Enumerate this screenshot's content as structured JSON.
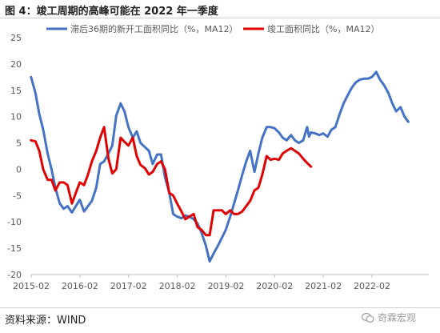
{
  "header": {
    "title": "图 4：竣工周期的高峰可能在 2022 年一季度"
  },
  "footer": {
    "source": "资料来源：WIND",
    "watermark": "奇霖宏观"
  },
  "chart_data": {
    "type": "line",
    "title": "图 4：竣工周期的高峰可能在 2022 年一季度",
    "xlabel": "",
    "ylabel": "",
    "ylim": [
      -20,
      25
    ],
    "yticks": [
      -20,
      -15,
      -10,
      -5,
      0,
      5,
      10,
      15,
      20,
      25
    ],
    "xlim": [
      2015.0833,
      2023.25
    ],
    "xticks": [
      {
        "value": 2015.0833,
        "label": "2015-02"
      },
      {
        "value": 2016.0833,
        "label": "2016-02"
      },
      {
        "value": 2017.0833,
        "label": "2017-02"
      },
      {
        "value": 2018.0833,
        "label": "2018-02"
      },
      {
        "value": 2019.0833,
        "label": "2019-02"
      },
      {
        "value": 2020.0833,
        "label": "2020-02"
      },
      {
        "value": 2021.0833,
        "label": "2021-02"
      },
      {
        "value": 2022.0833,
        "label": "2022-02"
      }
    ],
    "grid": false,
    "legend_position": "top",
    "series": [
      {
        "name": "滞后36期的新开工面积同比（%，MA12）",
        "color": "#4472C4",
        "points": [
          [
            2015.08,
            17.5
          ],
          [
            2015.17,
            14.5
          ],
          [
            2015.25,
            10.5
          ],
          [
            2015.33,
            7.5
          ],
          [
            2015.42,
            3
          ],
          [
            2015.5,
            0
          ],
          [
            2015.58,
            -3.5
          ],
          [
            2015.67,
            -6.5
          ],
          [
            2015.75,
            -7.5
          ],
          [
            2015.83,
            -7
          ],
          [
            2015.92,
            -8.2
          ],
          [
            2016.0,
            -7
          ],
          [
            2016.08,
            -5.8
          ],
          [
            2016.17,
            -8
          ],
          [
            2016.25,
            -7
          ],
          [
            2016.33,
            -6
          ],
          [
            2016.42,
            -3.5
          ],
          [
            2016.5,
            1
          ],
          [
            2016.58,
            1.5
          ],
          [
            2016.67,
            3
          ],
          [
            2016.75,
            4.5
          ],
          [
            2016.83,
            10.2
          ],
          [
            2016.92,
            12.5
          ],
          [
            2017.0,
            11
          ],
          [
            2017.08,
            8
          ],
          [
            2017.17,
            6
          ],
          [
            2017.25,
            7.2
          ],
          [
            2017.33,
            5
          ],
          [
            2017.42,
            4.2
          ],
          [
            2017.5,
            3.5
          ],
          [
            2017.58,
            1
          ],
          [
            2017.67,
            2.8
          ],
          [
            2017.75,
            2.8
          ],
          [
            2017.83,
            -1.5
          ],
          [
            2017.92,
            -4.5
          ],
          [
            2018.0,
            -8.5
          ],
          [
            2018.08,
            -9
          ],
          [
            2018.17,
            -9.3
          ],
          [
            2018.25,
            -8.8
          ],
          [
            2018.33,
            -9
          ],
          [
            2018.42,
            -9.5
          ],
          [
            2018.5,
            -10.3
          ],
          [
            2018.58,
            -12
          ],
          [
            2018.67,
            -14.5
          ],
          [
            2018.75,
            -17.5
          ],
          [
            2018.83,
            -16
          ],
          [
            2018.92,
            -14.5
          ],
          [
            2019.0,
            -13
          ],
          [
            2019.08,
            -11.5
          ],
          [
            2019.17,
            -9
          ],
          [
            2019.25,
            -6.5
          ],
          [
            2019.33,
            -4
          ],
          [
            2019.42,
            -1
          ],
          [
            2019.5,
            1.5
          ],
          [
            2019.58,
            3.5
          ],
          [
            2019.67,
            -0.5
          ],
          [
            2019.75,
            3
          ],
          [
            2019.83,
            6
          ],
          [
            2019.92,
            8
          ],
          [
            2020.0,
            8
          ],
          [
            2020.08,
            7.8
          ],
          [
            2020.17,
            7
          ],
          [
            2020.25,
            6
          ],
          [
            2020.33,
            5.5
          ],
          [
            2020.42,
            6.5
          ],
          [
            2020.5,
            5.5
          ],
          [
            2020.58,
            5
          ],
          [
            2020.67,
            5.5
          ],
          [
            2020.75,
            8
          ],
          [
            2020.79,
            6.2
          ],
          [
            2020.83,
            7
          ],
          [
            2020.92,
            6.8
          ],
          [
            2021.0,
            6.5
          ],
          [
            2021.08,
            6.8
          ],
          [
            2021.17,
            6.2
          ],
          [
            2021.25,
            7.5
          ],
          [
            2021.33,
            8
          ],
          [
            2021.42,
            10.5
          ],
          [
            2021.5,
            12.5
          ],
          [
            2021.58,
            14
          ],
          [
            2021.67,
            15.5
          ],
          [
            2021.75,
            16.5
          ],
          [
            2021.83,
            17
          ],
          [
            2021.92,
            17.2
          ],
          [
            2022.0,
            17.2
          ],
          [
            2022.08,
            17.5
          ],
          [
            2022.17,
            18.5
          ],
          [
            2022.25,
            17
          ],
          [
            2022.33,
            16
          ],
          [
            2022.42,
            14.5
          ],
          [
            2022.5,
            12.5
          ],
          [
            2022.58,
            11
          ],
          [
            2022.67,
            11.8
          ],
          [
            2022.75,
            10
          ],
          [
            2022.83,
            9
          ]
        ]
      },
      {
        "name": "竣工面积同比（%，MA12）",
        "color": "#E00000",
        "points": [
          [
            2015.08,
            5.5
          ],
          [
            2015.17,
            5.3
          ],
          [
            2015.25,
            3.5
          ],
          [
            2015.33,
            0
          ],
          [
            2015.42,
            -2
          ],
          [
            2015.5,
            -2
          ],
          [
            2015.58,
            -4
          ],
          [
            2015.67,
            -2.5
          ],
          [
            2015.75,
            -2.5
          ],
          [
            2015.83,
            -3
          ],
          [
            2015.92,
            -6.5
          ],
          [
            2016.0,
            -4.5
          ],
          [
            2016.08,
            -2.5
          ],
          [
            2016.17,
            -3
          ],
          [
            2016.25,
            -1
          ],
          [
            2016.33,
            1.5
          ],
          [
            2016.42,
            3.5
          ],
          [
            2016.5,
            6
          ],
          [
            2016.58,
            8
          ],
          [
            2016.67,
            2
          ],
          [
            2016.75,
            -0.8
          ],
          [
            2016.83,
            0
          ],
          [
            2016.92,
            6
          ],
          [
            2017.0,
            5.2
          ],
          [
            2017.08,
            4.5
          ],
          [
            2017.17,
            6
          ],
          [
            2017.25,
            2.5
          ],
          [
            2017.33,
            0.8
          ],
          [
            2017.42,
            0.2
          ],
          [
            2017.5,
            -1
          ],
          [
            2017.58,
            -0.5
          ],
          [
            2017.67,
            1
          ],
          [
            2017.75,
            1.5
          ],
          [
            2017.83,
            0
          ],
          [
            2017.92,
            -4.5
          ],
          [
            2018.0,
            -5
          ],
          [
            2018.08,
            -6.5
          ],
          [
            2018.17,
            -8
          ],
          [
            2018.25,
            -9.5
          ],
          [
            2018.33,
            -9
          ],
          [
            2018.42,
            -8.5
          ],
          [
            2018.5,
            -11
          ],
          [
            2018.58,
            -11.5
          ],
          [
            2018.67,
            -12.5
          ],
          [
            2018.75,
            -12.5
          ],
          [
            2018.83,
            -7.8
          ],
          [
            2018.92,
            -7.8
          ],
          [
            2019.0,
            -7.8
          ],
          [
            2019.08,
            -8.5
          ],
          [
            2019.17,
            -7.8
          ],
          [
            2019.25,
            -8.5
          ],
          [
            2019.33,
            -8.5
          ],
          [
            2019.42,
            -8
          ],
          [
            2019.5,
            -7
          ],
          [
            2019.58,
            -6
          ],
          [
            2019.67,
            -4
          ],
          [
            2019.75,
            -3.5
          ],
          [
            2019.83,
            -1
          ],
          [
            2019.92,
            2.5
          ],
          [
            2020.0,
            1.8
          ],
          [
            2020.08,
            2
          ],
          [
            2020.17,
            1.8
          ],
          [
            2020.25,
            3
          ],
          [
            2020.33,
            3.5
          ],
          [
            2020.42,
            4
          ],
          [
            2020.5,
            3.5
          ],
          [
            2020.58,
            3
          ],
          [
            2020.67,
            2
          ],
          [
            2020.75,
            1.2
          ],
          [
            2020.83,
            0.5
          ]
        ]
      }
    ]
  }
}
